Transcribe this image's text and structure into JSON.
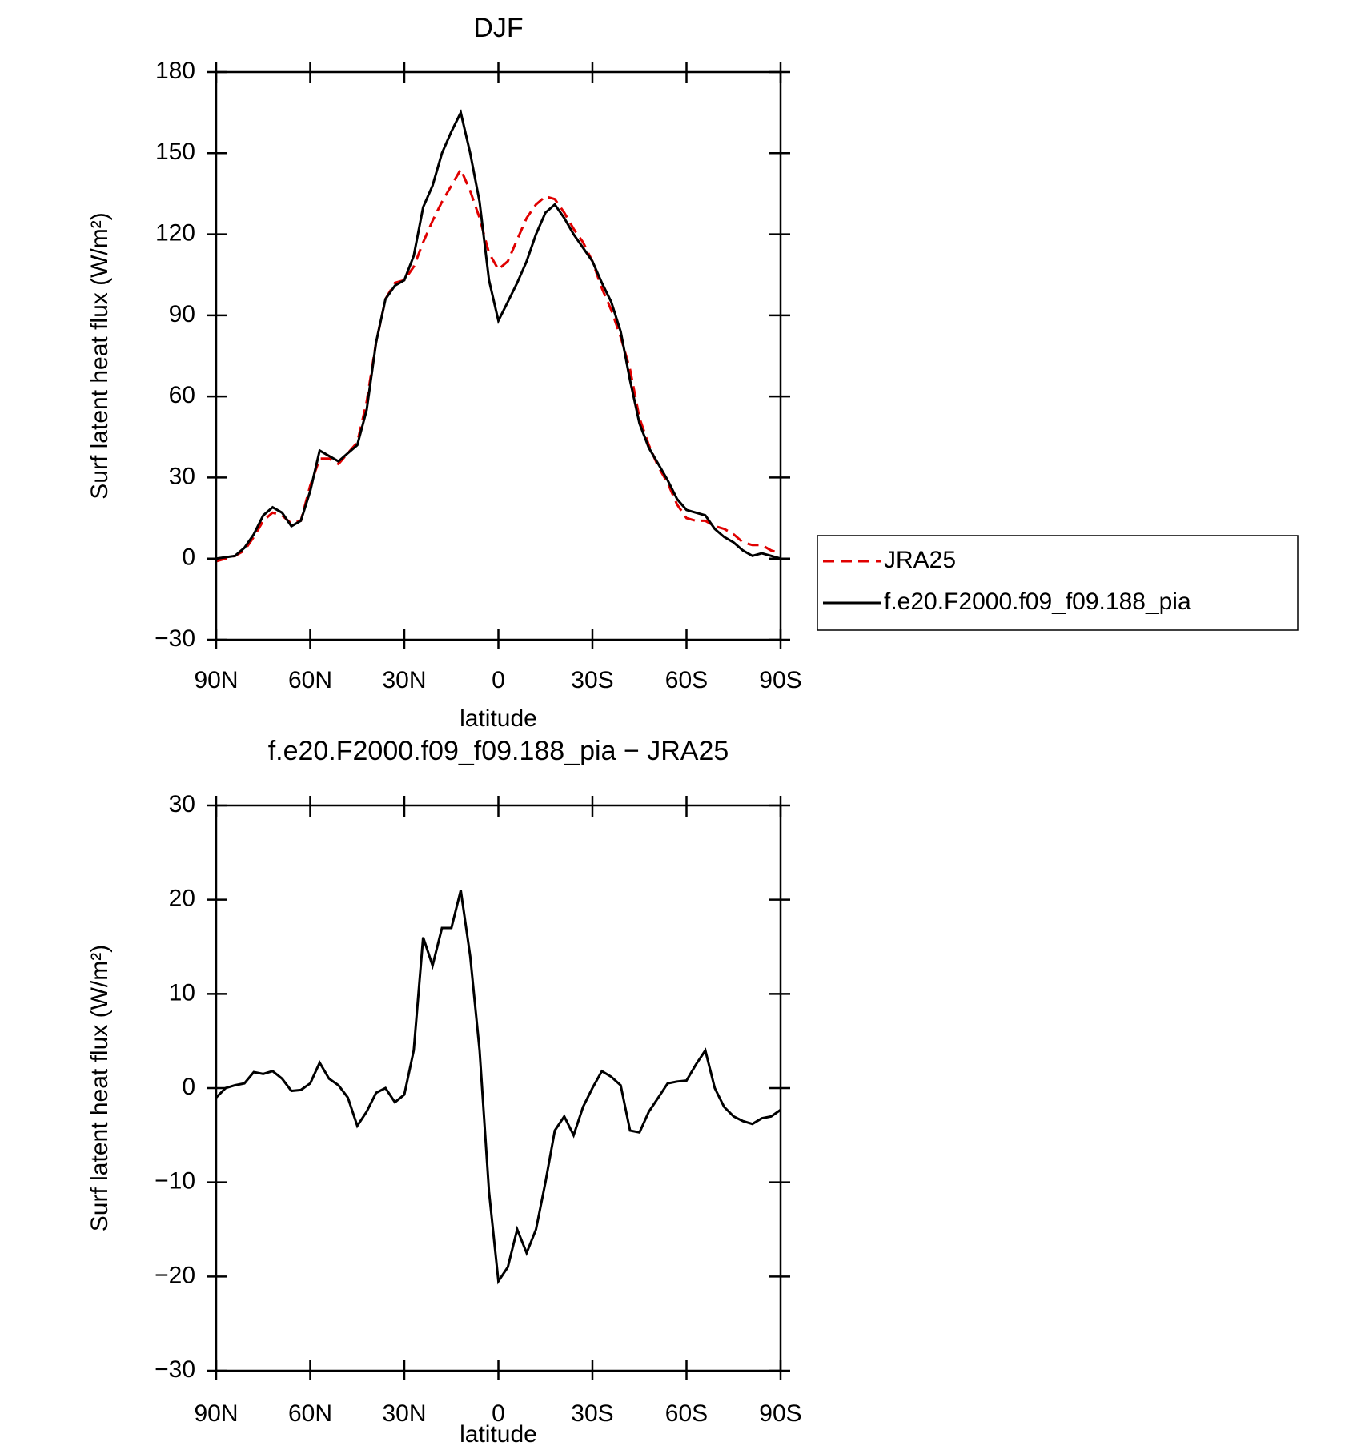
{
  "chart_data": [
    {
      "type": "line",
      "title": "DJF",
      "x_label": "latitude",
      "y_label": "Surf latent heat flux (W/m²)",
      "x": [
        90,
        87,
        84,
        81,
        78,
        75,
        72,
        69,
        66,
        63,
        60,
        57,
        54,
        51,
        48,
        45,
        42,
        39,
        36,
        33,
        30,
        27,
        24,
        21,
        18,
        15,
        12,
        9,
        6,
        3,
        0,
        -3,
        -6,
        -9,
        -12,
        -15,
        -18,
        -21,
        -24,
        -27,
        -30,
        -33,
        -36,
        -39,
        -42,
        -45,
        -48,
        -51,
        -54,
        -57,
        -60,
        -63,
        -66,
        -69,
        -72,
        -75,
        -78,
        -81,
        -84,
        -87,
        -90
      ],
      "series": [
        {
          "name": "JRA25",
          "color": "#e00000",
          "style": "dashed",
          "values": [
            -1,
            0,
            1,
            3,
            8,
            14,
            17,
            16,
            13,
            14,
            27,
            37,
            37,
            35,
            39,
            43,
            58,
            80,
            96,
            102,
            103,
            108,
            117,
            125,
            132,
            138,
            144,
            136,
            126,
            113,
            107,
            110,
            118,
            126,
            131,
            134,
            133,
            128,
            122,
            117,
            110,
            100,
            92,
            82,
            70,
            52,
            42,
            34,
            28,
            20,
            15,
            14,
            14,
            12,
            11,
            9,
            6,
            5,
            5,
            3,
            2
          ]
        },
        {
          "name": "f.e20.F2000.f09_f09.188_pia",
          "color": "#000000",
          "style": "solid",
          "values": [
            0,
            0.5,
            1,
            4,
            9,
            16,
            19,
            17,
            12,
            14,
            25,
            40,
            38,
            36,
            39,
            42,
            55,
            80,
            96,
            101,
            103,
            112,
            130,
            138,
            150,
            158,
            165,
            150,
            132,
            103,
            88,
            95,
            102,
            110,
            120,
            128,
            131,
            126,
            120,
            115,
            110,
            102,
            95,
            84,
            66,
            50,
            41,
            35,
            29,
            22,
            18,
            17,
            16,
            11,
            8,
            6,
            3,
            1,
            2,
            1,
            0
          ]
        }
      ],
      "xlim": [
        90,
        -90
      ],
      "xticks": [
        {
          "value": 90,
          "label": "90N"
        },
        {
          "value": 60,
          "label": "60N"
        },
        {
          "value": 30,
          "label": "30N"
        },
        0,
        {
          "value": -30,
          "label": "30S"
        },
        {
          "value": -60,
          "label": "60S"
        },
        {
          "value": -90,
          "label": "90S"
        }
      ],
      "ylim": [
        -30,
        180
      ],
      "yticks": [
        {
          "value": -30,
          "label": "−30"
        },
        0,
        30,
        60,
        90,
        120,
        150,
        180
      ],
      "legend": "outside-right"
    },
    {
      "type": "line",
      "title": "f.e20.F2000.f09_f09.188_pia − JRA25",
      "x_label": "latitude",
      "y_label": "Surf latent heat flux (W/m²)",
      "x": [
        90,
        87,
        84,
        81,
        78,
        75,
        72,
        69,
        66,
        63,
        60,
        57,
        54,
        51,
        48,
        45,
        42,
        39,
        36,
        33,
        30,
        27,
        24,
        21,
        18,
        15,
        12,
        9,
        6,
        3,
        0,
        -3,
        -6,
        -9,
        -12,
        -15,
        -18,
        -21,
        -24,
        -27,
        -30,
        -33,
        -36,
        -39,
        -42,
        -45,
        -48,
        -51,
        -54,
        -57,
        -60,
        -63,
        -66,
        -69,
        -72,
        -75,
        -78,
        -81,
        -84,
        -87,
        -90
      ],
      "series": [
        {
          "color": "#000000",
          "style": "solid",
          "values": [
            -1,
            0,
            0.3,
            0.5,
            1.7,
            1.5,
            1.8,
            1,
            -0.3,
            -0.2,
            0.5,
            2.7,
            1,
            0.3,
            -1,
            -4,
            -2.5,
            -0.5,
            0,
            -1.5,
            -0.7,
            4,
            16,
            13,
            17,
            17,
            21,
            14,
            4,
            -11,
            -20.5,
            -19,
            -15,
            -17.5,
            -15,
            -10,
            -4.5,
            -3,
            -5,
            -2,
            0,
            1.8,
            1.2,
            0.3,
            -4.5,
            -4.7,
            -2.5,
            -1,
            0.5,
            0.7,
            0.8,
            2.5,
            4,
            0,
            -2,
            -3,
            -3.5,
            -3.8,
            -3.2,
            -3,
            -2.3
          ]
        }
      ],
      "xlim": [
        90,
        -90
      ],
      "xticks": [
        {
          "value": 90,
          "label": "90N"
        },
        {
          "value": 60,
          "label": "60N"
        },
        {
          "value": 30,
          "label": "30N"
        },
        0,
        {
          "value": -30,
          "label": "30S"
        },
        {
          "value": -60,
          "label": "60S"
        },
        {
          "value": -90,
          "label": "90S"
        }
      ],
      "ylim": [
        -30,
        30
      ],
      "yticks": [
        {
          "value": -30,
          "label": "−30"
        },
        {
          "value": -20,
          "label": "−20"
        },
        {
          "value": -10,
          "label": "−10"
        },
        0,
        10,
        20,
        30
      ]
    }
  ]
}
